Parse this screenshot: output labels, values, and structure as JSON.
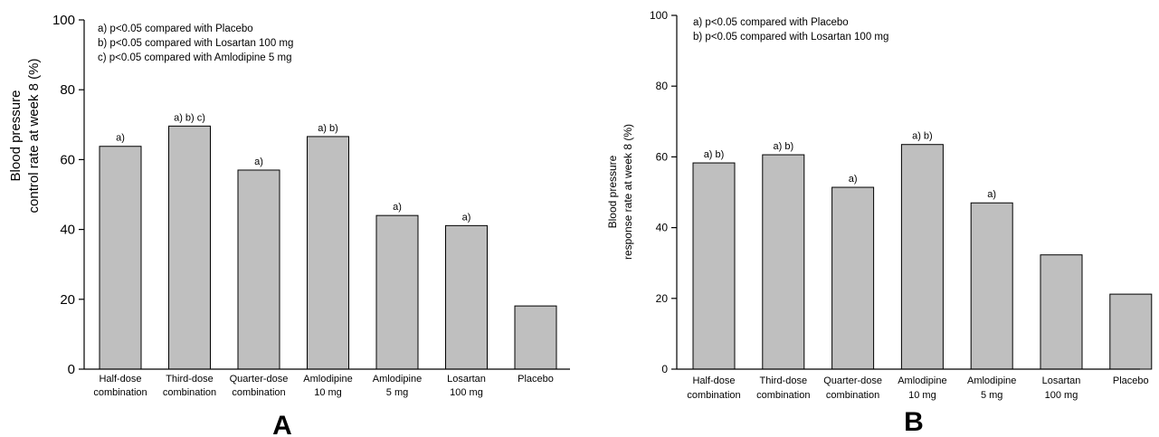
{
  "chart_data": [
    {
      "type": "bar",
      "panel_label": "A",
      "categories": [
        [
          "Half-dose",
          "combination"
        ],
        [
          "Third-dose",
          "combination"
        ],
        [
          "Quarter-dose",
          "combination"
        ],
        [
          "Amlodipine",
          "10 mg"
        ],
        [
          "Amlodipine",
          "5 mg"
        ],
        [
          "Losartan",
          "100 mg"
        ],
        [
          "Placebo"
        ]
      ],
      "values": [
        63.8,
        69.6,
        57.0,
        66.6,
        44.0,
        41.1,
        18.1
      ],
      "annotations": [
        "a)",
        "a) b) c)",
        "a)",
        "a) b)",
        "a)",
        "a)",
        ""
      ],
      "ylabel": [
        "Blood pressure",
        "control rate at week 8 (%)"
      ],
      "xlabel": "",
      "ylim": [
        0,
        100
      ],
      "yticks": [
        0,
        20,
        40,
        60,
        80,
        100
      ],
      "notes": [
        "a) p<0.05 compared with Placebo",
        "b) p<0.05 compared with Losartan 100 mg",
        "c) p<0.05 compared with Amlodipine 5 mg"
      ],
      "grid": false,
      "bar_color": "#bfbfbf"
    },
    {
      "type": "bar",
      "panel_label": "B",
      "categories": [
        [
          "Half-dose",
          "combination"
        ],
        [
          "Third-dose",
          "combination"
        ],
        [
          "Quarter-dose",
          "combination"
        ],
        [
          "Amlodipine",
          "10 mg"
        ],
        [
          "Amlodipine",
          "5 mg"
        ],
        [
          "Losartan",
          "100 mg"
        ],
        [
          "Placebo"
        ]
      ],
      "values": [
        58.3,
        60.6,
        51.4,
        63.5,
        47.0,
        32.3,
        21.2
      ],
      "annotations": [
        "a) b)",
        "a) b)",
        "a)",
        "a) b)",
        "a)",
        "",
        ""
      ],
      "ylabel": [
        "Blood pressure",
        "response rate at week 8 (%)"
      ],
      "xlabel": "",
      "ylim": [
        0,
        100
      ],
      "yticks": [
        0,
        20,
        40,
        60,
        80,
        100
      ],
      "notes": [
        "a) p<0.05 compared with Placebo",
        "b) p<0.05 compared with Losartan 100 mg"
      ],
      "grid": false,
      "bar_color": "#bfbfbf"
    }
  ]
}
